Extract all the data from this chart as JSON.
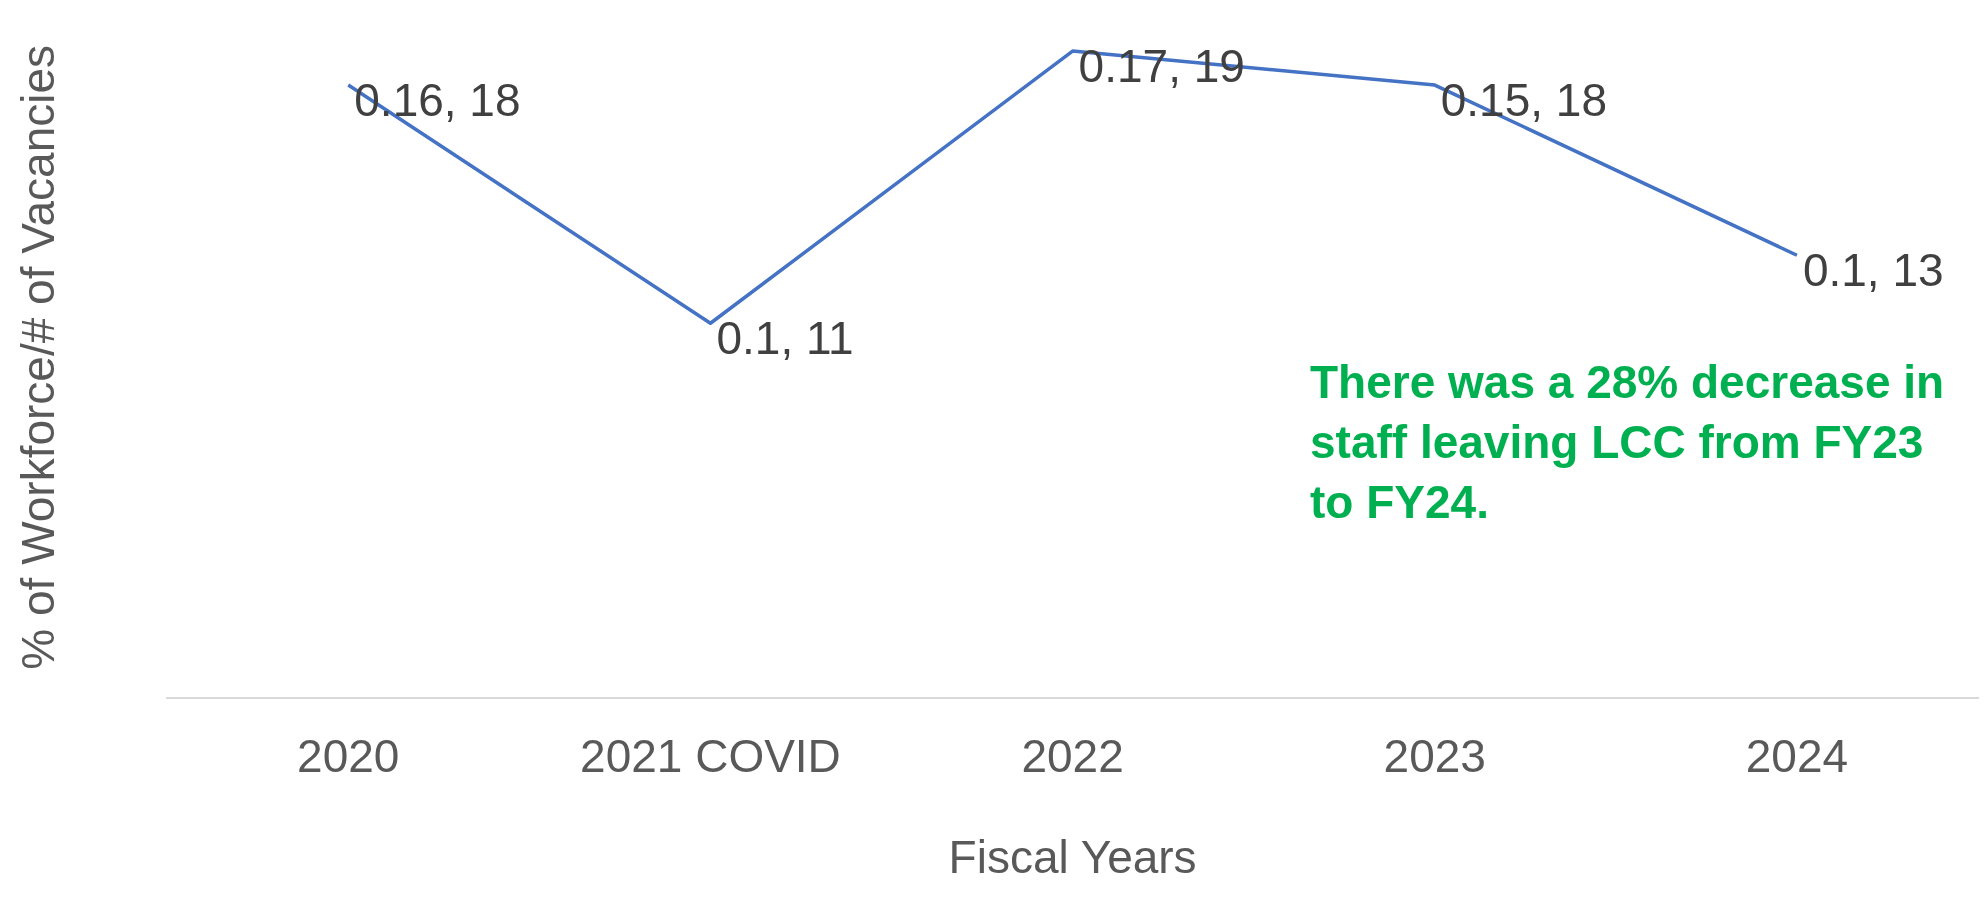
{
  "chart_data": {
    "type": "line",
    "xlabel": "Fiscal Years",
    "ylabel": "% of Workforce/# of Vacancies",
    "categories": [
      "2020",
      "2021 COVID",
      "2022",
      "2023",
      "2024"
    ],
    "series": [
      {
        "color": "#4472c4",
        "values": [
          18,
          11,
          19,
          18,
          13
        ],
        "value_labels": [
          "0.16, 18",
          "0.1, 11",
          "0.17, 19",
          "0.15, 18",
          "0.1, 13"
        ]
      }
    ],
    "tick_labels": "x",
    "grid": false,
    "legend": false,
    "marker": "none",
    "line_style": "solid",
    "annotations": [
      "There was a 28% decrease in staff leaving LCC from FY23 to FY24."
    ]
  }
}
